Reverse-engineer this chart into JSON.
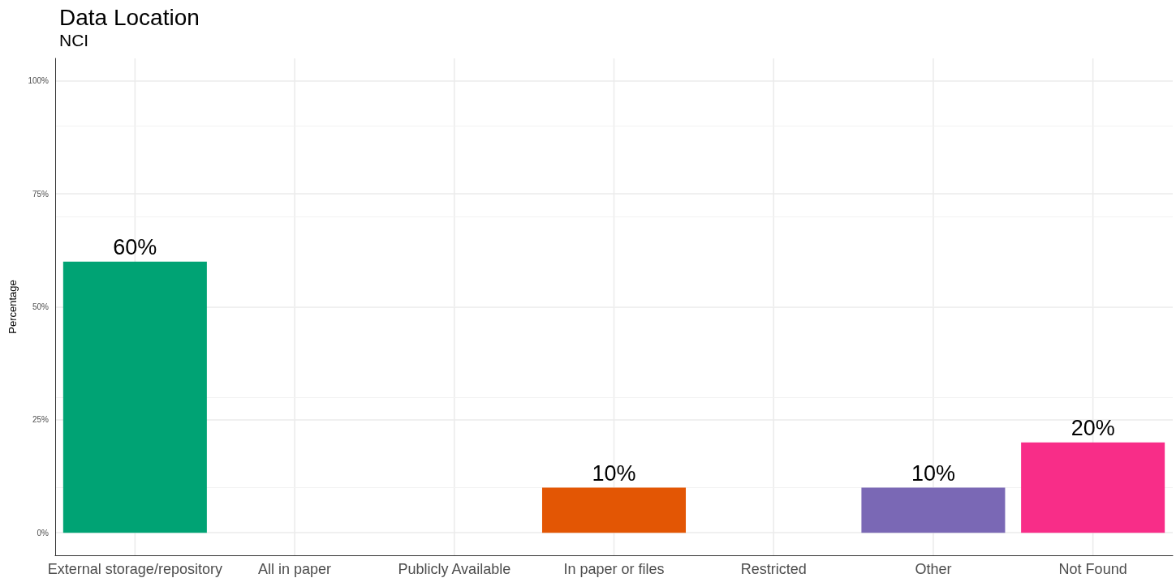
{
  "chart_data": {
    "type": "bar",
    "title": "Data Location",
    "subtitle": "NCI",
    "ylabel": "Percentage",
    "categories": [
      "External storage/repository",
      "All in paper",
      "Publicly Available",
      "In paper or files",
      "Restricted",
      "Other",
      "Not Found"
    ],
    "values": [
      60,
      0,
      0,
      10,
      0,
      10,
      20
    ],
    "colors": [
      "#00a374",
      null,
      null,
      "#e35604",
      null,
      "#7a68b5",
      "#f82d88"
    ],
    "value_labels": [
      "60%",
      null,
      null,
      "10%",
      null,
      "10%",
      "20%"
    ],
    "ylim": [
      -5,
      105
    ],
    "yticks": [
      {
        "value": 0,
        "label": "0%"
      },
      {
        "value": 25,
        "label": "25%"
      },
      {
        "value": 50,
        "label": "50%"
      },
      {
        "value": 75,
        "label": "75%"
      },
      {
        "value": 100,
        "label": "100%"
      }
    ],
    "grid": true
  }
}
